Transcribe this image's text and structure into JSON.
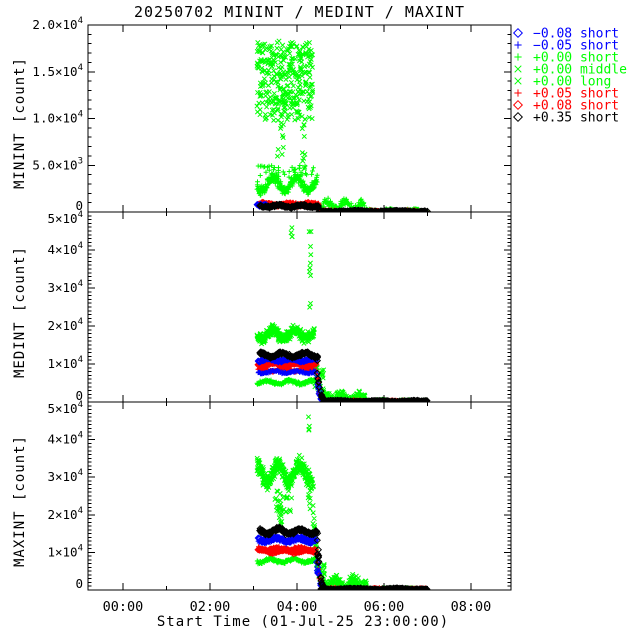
{
  "chart_data": {
    "type": "scatter",
    "title": "20250702 MININT / MEDINT / MAXINT",
    "xlabel": "Start Time (01-Jul-25 23:00:00)",
    "grid": false,
    "legend_position": "right-top",
    "colors": {
      "g": "#00ff00",
      "r": "#ff0000",
      "b": "#0000ff",
      "k": "#000000",
      "frame": "#000000",
      "bg": "#ffffff"
    },
    "x_axis": {
      "title": "Start Time (01-Jul-25 23:00:00)",
      "range_hours": [
        -0.8,
        8.92
      ],
      "minor_step_hours": 1,
      "tick_hours": [
        [
          0,
          "00:00"
        ],
        [
          2,
          "02:00"
        ],
        [
          4,
          "04:00"
        ],
        [
          6,
          "06:00"
        ],
        [
          8,
          "08:00"
        ]
      ]
    },
    "legend": [
      {
        "label": "−0.08 short",
        "sym": "d",
        "c": "b"
      },
      {
        "label": "−0.05 short",
        "sym": "p",
        "c": "b"
      },
      {
        "label": "+0.00 short",
        "sym": "p",
        "c": "g"
      },
      {
        "label": "+0.00 middle",
        "sym": "x",
        "c": "g"
      },
      {
        "label": "+0.00 long",
        "sym": "x",
        "c": "g"
      },
      {
        "label": "+0.05 short",
        "sym": "p",
        "c": "r"
      },
      {
        "label": "+0.08 short",
        "sym": "d",
        "c": "r"
      },
      {
        "label": "+0.35 short",
        "sym": "d",
        "c": "k"
      }
    ],
    "panels": [
      {
        "name": "MININT",
        "ylabel": "MININT [count]",
        "ylim": [
          0,
          20000
        ],
        "tick_major": 5000,
        "tick_minor": 1000,
        "yticks": [
          [
            20000,
            "2.0×10^4"
          ],
          [
            15000,
            "1.5×10^4"
          ],
          [
            10000,
            "1.0×10^4"
          ],
          [
            5000,
            "5.0×10^3"
          ],
          [
            0,
            "0"
          ]
        ],
        "segments": [
          {
            "series": "+0.00 middle",
            "sym": "x",
            "c": "g",
            "type": "cloud",
            "t0": 3.08,
            "t1": 4.36,
            "v0": 9800,
            "v1": 18300,
            "n": 240
          },
          {
            "series": "+0.00 long",
            "sym": "x",
            "c": "g",
            "type": "cloud",
            "t0": 3.1,
            "t1": 4.3,
            "v0": 11000,
            "v1": 17800,
            "n": 110
          },
          {
            "series": "+0.00 long",
            "sym": "x",
            "c": "g",
            "type": "column",
            "t": 3.62,
            "spread": 0.14,
            "v0": 4800,
            "v1": 9600,
            "n": 10
          },
          {
            "series": "+0.00 long",
            "sym": "x",
            "c": "g",
            "type": "column",
            "t": 4.16,
            "spread": 0.1,
            "v0": 4200,
            "v1": 9600,
            "n": 10
          },
          {
            "series": "+0.00 short",
            "sym": "p",
            "c": "g",
            "type": "band",
            "t0": 3.08,
            "t1": 4.47,
            "v": 3000,
            "amp": 700,
            "jit": 620,
            "n": 240
          },
          {
            "series": "+0.00 short",
            "sym": "p",
            "c": "g",
            "type": "cloud",
            "t0": 3.1,
            "t1": 4.4,
            "v0": 3600,
            "v1": 5000,
            "n": 40
          },
          {
            "series": "+0.00 short",
            "sym": "p",
            "c": "g",
            "type": "band",
            "t0": 4.5,
            "t1": 5.55,
            "v": 700,
            "amp": 420,
            "jit": 520,
            "n": 110
          },
          {
            "series": "+0.00 short",
            "sym": "p",
            "c": "g",
            "type": "band",
            "t0": 5.55,
            "t1": 7.0,
            "v": 180,
            "amp": 90,
            "jit": 160,
            "n": 70
          },
          {
            "series": "+0.05 short",
            "sym": "p",
            "c": "r",
            "type": "band",
            "t0": 3.1,
            "t1": 4.5,
            "v": 800,
            "amp": 130,
            "jit": 170,
            "n": 150
          },
          {
            "series": "+0.08 short",
            "sym": "d",
            "c": "r",
            "type": "band",
            "t0": 3.1,
            "t1": 4.5,
            "v": 780,
            "amp": 120,
            "jit": 160,
            "n": 90
          },
          {
            "series": "+0.05 short",
            "sym": "p",
            "c": "r",
            "type": "band",
            "t0": 4.5,
            "t1": 7.0,
            "v": 120,
            "amp": 60,
            "jit": 100,
            "n": 110
          },
          {
            "series": "−0.08 short",
            "sym": "d",
            "c": "b",
            "type": "band",
            "t0": 3.08,
            "t1": 3.3,
            "v": 730,
            "amp": 60,
            "jit": 110,
            "n": 14
          },
          {
            "series": "−0.05 short",
            "sym": "p",
            "c": "b",
            "type": "band",
            "t0": 3.08,
            "t1": 3.3,
            "v": 700,
            "amp": 60,
            "jit": 110,
            "n": 12
          },
          {
            "series": "+0.35 short",
            "sym": "d",
            "c": "k",
            "type": "band",
            "t0": 3.14,
            "t1": 4.5,
            "v": 630,
            "amp": 110,
            "jit": 140,
            "n": 140
          },
          {
            "series": "+0.35 short",
            "sym": "d",
            "c": "k",
            "type": "band",
            "t0": 4.5,
            "t1": 7.0,
            "v": 90,
            "amp": 50,
            "jit": 80,
            "n": 140
          }
        ]
      },
      {
        "name": "MEDINT",
        "ylabel": "MEDINT [count]",
        "ylim": [
          0,
          50000
        ],
        "tick_major": 10000,
        "tick_minor": 1000,
        "yticks": [
          [
            50000,
            "5×10^4"
          ],
          [
            40000,
            "4×10^4"
          ],
          [
            30000,
            "3×10^4"
          ],
          [
            20000,
            "2×10^4"
          ],
          [
            10000,
            "1×10^4"
          ],
          [
            0,
            "0"
          ]
        ],
        "segments": [
          {
            "series": "+0.00 middle",
            "sym": "x",
            "c": "g",
            "type": "band",
            "t0": 3.08,
            "t1": 4.4,
            "v": 17800,
            "amp": 1100,
            "jit": 1700,
            "n": 270
          },
          {
            "series": "+0.00 long",
            "sym": "x",
            "c": "g",
            "type": "column",
            "t": 3.88,
            "spread": 0.05,
            "v0": 43500,
            "v1": 46500,
            "n": 4
          },
          {
            "series": "+0.00 long",
            "sym": "x",
            "c": "g",
            "type": "column",
            "t": 4.3,
            "spread": 0.05,
            "v0": 23000,
            "v1": 45500,
            "n": 10
          },
          {
            "series": "+0.00 long",
            "sym": "x",
            "c": "g",
            "type": "cloud",
            "t0": 4.4,
            "t1": 4.62,
            "v0": 2000,
            "v1": 9500,
            "n": 22
          },
          {
            "series": "+0.00 middle",
            "sym": "x",
            "c": "g",
            "type": "decay",
            "t0": 4.4,
            "t1": 4.62,
            "v0": 16000,
            "v1": 1200,
            "n": 40
          },
          {
            "series": "+0.00 short",
            "sym": "p",
            "c": "g",
            "type": "band",
            "t0": 3.08,
            "t1": 4.46,
            "v": 5200,
            "amp": 380,
            "jit": 520,
            "n": 170
          },
          {
            "series": "+0.00 short",
            "sym": "p",
            "c": "g",
            "type": "decay",
            "t0": 4.46,
            "t1": 4.66,
            "v0": 4800,
            "v1": 400,
            "n": 25
          },
          {
            "series": "+0.00 middle",
            "sym": "x",
            "c": "g",
            "type": "band",
            "t0": 4.6,
            "t1": 5.6,
            "v": 1100,
            "amp": 700,
            "jit": 1500,
            "n": 140
          },
          {
            "series": "+0.00 short",
            "sym": "p",
            "c": "g",
            "type": "band",
            "t0": 5.6,
            "t1": 7.0,
            "v": 350,
            "amp": 160,
            "jit": 300,
            "n": 60
          },
          {
            "series": "+0.05 short",
            "sym": "p",
            "c": "r",
            "type": "band",
            "t0": 3.1,
            "t1": 4.44,
            "v": 8400,
            "amp": 320,
            "jit": 420,
            "n": 140
          },
          {
            "series": "+0.08 short",
            "sym": "d",
            "c": "r",
            "type": "band",
            "t0": 3.1,
            "t1": 4.44,
            "v": 9900,
            "amp": 360,
            "jit": 400,
            "n": 120
          },
          {
            "series": "+0.05 short",
            "sym": "p",
            "c": "r",
            "type": "decay",
            "t0": 4.44,
            "t1": 4.64,
            "v0": 9000,
            "v1": 350,
            "n": 26
          },
          {
            "series": "+0.05 short",
            "sym": "p",
            "c": "r",
            "type": "band",
            "t0": 4.6,
            "t1": 7.0,
            "v": 300,
            "amp": 150,
            "jit": 240,
            "n": 120
          },
          {
            "series": "−0.08 short",
            "sym": "d",
            "c": "b",
            "type": "band",
            "t0": 3.1,
            "t1": 4.44,
            "v": 11100,
            "amp": 360,
            "jit": 360,
            "n": 120
          },
          {
            "series": "−0.05 short",
            "sym": "p",
            "c": "b",
            "type": "band",
            "t0": 3.1,
            "t1": 4.44,
            "v": 7900,
            "amp": 300,
            "jit": 360,
            "n": 110
          },
          {
            "series": "−0.08 short",
            "sym": "d",
            "c": "b",
            "type": "decay",
            "t0": 4.44,
            "t1": 4.6,
            "v0": 10800,
            "v1": 400,
            "n": 16
          },
          {
            "series": "+0.35 short",
            "sym": "d",
            "c": "k",
            "type": "band",
            "t0": 3.14,
            "t1": 4.46,
            "v": 12400,
            "amp": 520,
            "jit": 470,
            "n": 150
          },
          {
            "series": "+0.35 short",
            "sym": "d",
            "c": "k",
            "type": "decay",
            "t0": 4.46,
            "t1": 4.64,
            "v0": 12000,
            "v1": 400,
            "n": 24
          },
          {
            "series": "+0.35 short",
            "sym": "d",
            "c": "k",
            "type": "band",
            "t0": 4.6,
            "t1": 7.0,
            "v": 240,
            "amp": 120,
            "jit": 200,
            "n": 130
          }
        ]
      },
      {
        "name": "MAXINT",
        "ylabel": "MAXINT [count]",
        "ylim": [
          0,
          50000
        ],
        "tick_major": 10000,
        "tick_minor": 1000,
        "yticks": [
          [
            50000,
            "5×10^4"
          ],
          [
            40000,
            "4×10^4"
          ],
          [
            30000,
            "3×10^4"
          ],
          [
            20000,
            "2×10^4"
          ],
          [
            10000,
            "1×10^4"
          ],
          [
            0,
            "0"
          ]
        ],
        "segments": [
          {
            "series": "+0.00 middle",
            "sym": "x",
            "c": "g",
            "type": "band",
            "t0": 3.08,
            "t1": 4.36,
            "v": 31000,
            "amp": 2300,
            "jit": 2700,
            "n": 310
          },
          {
            "series": "+0.00 long",
            "sym": "x",
            "c": "g",
            "type": "cloud",
            "t0": 3.48,
            "t1": 3.88,
            "v0": 20500,
            "v1": 26500,
            "n": 30
          },
          {
            "series": "+0.00 long",
            "sym": "x",
            "c": "g",
            "type": "column",
            "t": 3.62,
            "spread": 0.08,
            "v0": 14500,
            "v1": 20500,
            "n": 8
          },
          {
            "series": "+0.00 long",
            "sym": "x",
            "c": "g",
            "type": "column",
            "t": 4.28,
            "spread": 0.05,
            "v0": 19000,
            "v1": 48500,
            "n": 13
          },
          {
            "series": "+0.00 middle",
            "sym": "x",
            "c": "g",
            "type": "decay",
            "t0": 4.36,
            "t1": 4.6,
            "v0": 26000,
            "v1": 1500,
            "n": 45
          },
          {
            "series": "+0.00 short",
            "sym": "p",
            "c": "g",
            "type": "band",
            "t0": 3.08,
            "t1": 4.46,
            "v": 7800,
            "amp": 470,
            "jit": 560,
            "n": 170
          },
          {
            "series": "+0.00 short",
            "sym": "p",
            "c": "g",
            "type": "decay",
            "t0": 4.46,
            "t1": 4.68,
            "v0": 7300,
            "v1": 500,
            "n": 30
          },
          {
            "series": "+0.00 middle",
            "sym": "x",
            "c": "g",
            "type": "band",
            "t0": 4.55,
            "t1": 5.6,
            "v": 1600,
            "amp": 1100,
            "jit": 2100,
            "n": 170
          },
          {
            "series": "+0.00 long",
            "sym": "x",
            "c": "g",
            "type": "column",
            "t": 4.6,
            "spread": 0.06,
            "v0": 2000,
            "v1": 10500,
            "n": 12
          },
          {
            "series": "+0.00 short",
            "sym": "p",
            "c": "g",
            "type": "band",
            "t0": 5.6,
            "t1": 7.0,
            "v": 380,
            "amp": 170,
            "jit": 300,
            "n": 60
          },
          {
            "series": "+0.05 short",
            "sym": "p",
            "c": "r",
            "type": "band",
            "t0": 3.1,
            "t1": 4.44,
            "v": 11000,
            "amp": 360,
            "jit": 420,
            "n": 140
          },
          {
            "series": "+0.08 short",
            "sym": "d",
            "c": "r",
            "type": "band",
            "t0": 3.1,
            "t1": 4.44,
            "v": 10300,
            "amp": 350,
            "jit": 400,
            "n": 100
          },
          {
            "series": "+0.05 short",
            "sym": "p",
            "c": "r",
            "type": "decay",
            "t0": 4.44,
            "t1": 4.66,
            "v0": 10500,
            "v1": 400,
            "n": 28
          },
          {
            "series": "+0.05 short",
            "sym": "p",
            "c": "r",
            "type": "band",
            "t0": 4.55,
            "t1": 7.0,
            "v": 330,
            "amp": 150,
            "jit": 250,
            "n": 130
          },
          {
            "series": "−0.08 short",
            "sym": "d",
            "c": "b",
            "type": "band",
            "t0": 3.1,
            "t1": 4.44,
            "v": 13500,
            "amp": 460,
            "jit": 420,
            "n": 110
          },
          {
            "series": "−0.05 short",
            "sym": "p",
            "c": "b",
            "type": "band",
            "t0": 3.1,
            "t1": 4.44,
            "v": 12900,
            "amp": 420,
            "jit": 420,
            "n": 110
          },
          {
            "series": "−0.08 short",
            "sym": "d",
            "c": "b",
            "type": "decay",
            "t0": 4.44,
            "t1": 4.62,
            "v0": 12800,
            "v1": 400,
            "n": 18
          },
          {
            "series": "+0.35 short",
            "sym": "d",
            "c": "k",
            "type": "band",
            "t0": 3.14,
            "t1": 4.46,
            "v": 15600,
            "amp": 680,
            "jit": 570,
            "n": 150
          },
          {
            "series": "+0.35 short",
            "sym": "d",
            "c": "k",
            "type": "decay",
            "t0": 4.46,
            "t1": 4.66,
            "v0": 15000,
            "v1": 400,
            "n": 30
          },
          {
            "series": "+0.35 short",
            "sym": "d",
            "c": "k",
            "type": "band",
            "t0": 4.55,
            "t1": 7.0,
            "v": 280,
            "amp": 130,
            "jit": 220,
            "n": 140
          }
        ]
      }
    ]
  }
}
